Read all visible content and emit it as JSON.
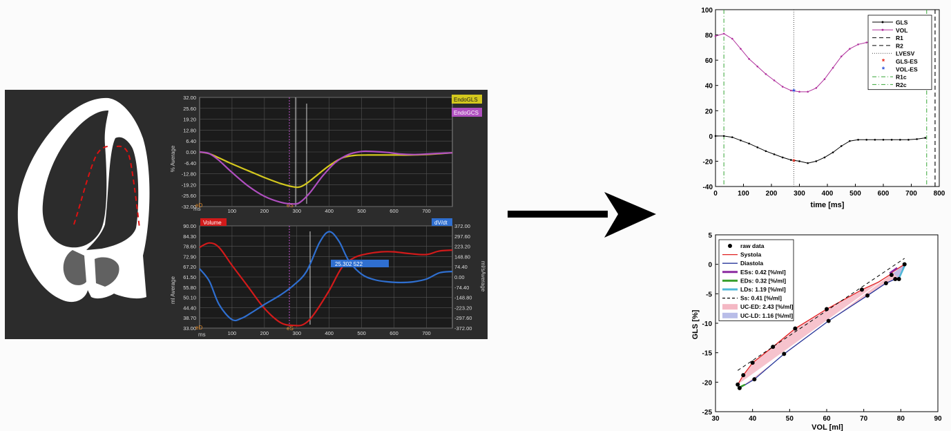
{
  "panel_a": {
    "gls_chart": {
      "y_ticks": [
        "32.00",
        "25.60",
        "19.20",
        "12.80",
        "6.40",
        "0.00",
        "-6.40",
        "-12.80",
        "-19.20",
        "-25.60",
        "-32.00"
      ],
      "x_ticks": [
        "100",
        "200",
        "300",
        "400",
        "500",
        "600",
        "700"
      ],
      "x_unit": "ms",
      "ylabel": "% Average",
      "ed_label": "eD",
      "es_label": "eS",
      "legend": [
        {
          "name": "EndoGLS",
          "color": "#d4c81e"
        },
        {
          "name": "EndoGCS",
          "color": "#b04fc0"
        }
      ]
    },
    "vol_chart": {
      "y_ticks_left": [
        "90.00",
        "84.30",
        "78.60",
        "72.90",
        "67.20",
        "61.50",
        "55.80",
        "50.10",
        "44.40",
        "38.70",
        "33.00"
      ],
      "y_ticks_right": [
        "372.00",
        "297.60",
        "223.20",
        "148.80",
        "74.40",
        "0.00",
        "-74.40",
        "-148.80",
        "-223.20",
        "-297.60",
        "-372.00"
      ],
      "x_ticks": [
        "100",
        "200",
        "300",
        "400",
        "500",
        "600",
        "700"
      ],
      "x_unit": "ms",
      "ylabel_left": "ml Average",
      "ylabel_right": "ml/sAverage",
      "ed_label": "eD",
      "es_label": "eS",
      "volume_tag": "Volume",
      "dvdt_tag": "dV/dt",
      "readout": "25.302  522",
      "colors": {
        "volume": "#d21a1a",
        "dvdt": "#2f6fd0"
      }
    }
  },
  "chart_data": [
    {
      "type": "line",
      "title": "",
      "xlabel": "ms",
      "ylabel": "% Average",
      "xlim": [
        0,
        780
      ],
      "ylim": [
        -32,
        32
      ],
      "grid": true,
      "legend_position": "top-right",
      "series": [
        {
          "name": "EndoGLS",
          "color": "#d4c81e",
          "x": [
            0,
            30,
            60,
            100,
            150,
            200,
            250,
            290,
            310,
            330,
            360,
            400,
            440,
            480,
            520,
            560,
            600,
            650,
            700,
            740,
            780
          ],
          "y": [
            0,
            -1,
            -3.5,
            -7,
            -11,
            -15,
            -18.5,
            -20.5,
            -20.5,
            -18.5,
            -14,
            -8,
            -3.5,
            -2,
            -1.8,
            -1.8,
            -1.8,
            -1.8,
            -1.5,
            -1,
            -0.5
          ]
        },
        {
          "name": "EndoGCS",
          "color": "#b04fc0",
          "x": [
            0,
            30,
            60,
            100,
            150,
            200,
            250,
            290,
            310,
            340,
            380,
            420,
            460,
            500,
            540,
            580,
            620,
            660,
            700,
            740,
            780
          ],
          "y": [
            0,
            -1,
            -5,
            -12,
            -20,
            -26,
            -29.5,
            -30.5,
            -29.5,
            -24,
            -14,
            -6,
            -1.5,
            0.3,
            0.2,
            -0.3,
            -1.2,
            -1.5,
            -1.2,
            -0.8,
            -0.5
          ]
        }
      ]
    },
    {
      "type": "line",
      "title": "",
      "xlabel": "ms",
      "ylabel": "ml Average",
      "ylabel_right": "ml/sAverage",
      "xlim": [
        0,
        780
      ],
      "ylim": [
        33,
        90
      ],
      "ylim_right": [
        -372,
        372
      ],
      "grid": true,
      "series": [
        {
          "name": "Volume",
          "axis": "left",
          "color": "#d21a1a",
          "x": [
            0,
            30,
            60,
            100,
            150,
            200,
            250,
            290,
            320,
            350,
            400,
            440,
            480,
            520,
            560,
            600,
            650,
            700,
            740,
            780
          ],
          "y": [
            78,
            80.5,
            78,
            68,
            56,
            44,
            36,
            34.5,
            35,
            40,
            54,
            67,
            72.5,
            74.5,
            75.5,
            75.5,
            74.5,
            74,
            76,
            76.5
          ]
        },
        {
          "name": "dV/dt",
          "axis": "right",
          "color": "#2f6fd0",
          "x": [
            0,
            30,
            60,
            100,
            130,
            160,
            200,
            250,
            290,
            330,
            370,
            400,
            430,
            460,
            500,
            540,
            580,
            620,
            660,
            700,
            740,
            780
          ],
          "y": [
            60,
            -30,
            -200,
            -310,
            -300,
            -260,
            -200,
            -130,
            -60,
            40,
            250,
            330,
            260,
            120,
            20,
            -20,
            -35,
            -40,
            -35,
            -15,
            30,
            40
          ]
        }
      ],
      "annotations": [
        "25.302  522"
      ]
    },
    {
      "type": "line",
      "title": "",
      "xlabel": "time [ms]",
      "ylabel": "",
      "xlim": [
        0,
        800
      ],
      "ylim": [
        -40,
        100
      ],
      "x_ticks": [
        0,
        100,
        200,
        300,
        400,
        500,
        600,
        700,
        800
      ],
      "y_ticks": [
        -40,
        -20,
        0,
        20,
        40,
        60,
        80,
        100
      ],
      "grid": false,
      "legend_position": "top-right",
      "series": [
        {
          "name": "GLS",
          "color": "#000000",
          "x": [
            0,
            30,
            60,
            90,
            120,
            150,
            180,
            210,
            240,
            270,
            300,
            330,
            360,
            390,
            420,
            450,
            480,
            510,
            540,
            570,
            600,
            630,
            660,
            690,
            720,
            750
          ],
          "y": [
            0,
            0,
            -1,
            -3.5,
            -6,
            -9,
            -12,
            -14.5,
            -17,
            -19,
            -20,
            -21.5,
            -20,
            -17,
            -13,
            -8,
            -4,
            -3,
            -3,
            -3,
            -3,
            -3,
            -3,
            -3,
            -2.5,
            -1.5
          ]
        },
        {
          "name": "VOL",
          "color": "#b0309c",
          "x": [
            0,
            30,
            60,
            90,
            120,
            150,
            180,
            210,
            240,
            270,
            300,
            330,
            360,
            390,
            420,
            450,
            480,
            510,
            540,
            570,
            600,
            630,
            660,
            690,
            720,
            750
          ],
          "y": [
            79,
            81,
            77,
            69,
            61,
            55,
            49,
            44,
            39,
            36,
            35,
            35,
            38,
            45,
            54,
            63,
            69,
            72.5,
            74,
            75,
            76,
            76.5,
            76.5,
            77,
            78,
            79
          ]
        }
      ],
      "reference_lines": [
        {
          "name": "R1",
          "x": 785,
          "style": "dashed",
          "color": "#000000"
        },
        {
          "name": "R2",
          "x": 785,
          "style": "dashed",
          "color": "#000000"
        },
        {
          "name": "LVESV",
          "x": 280,
          "style": "dotted",
          "color": "#444444"
        },
        {
          "name": "R1c",
          "x": 30,
          "style": "dashdot",
          "color": "#35a535"
        },
        {
          "name": "R2c",
          "x": 755,
          "style": "dashdot",
          "color": "#35a535"
        }
      ],
      "markers": [
        {
          "name": "GLS-ES",
          "x": 280,
          "y": -20.5,
          "color": "#e8281a"
        },
        {
          "name": "VOL-ES",
          "x": 280,
          "y": 35,
          "color": "#2a4fd8"
        }
      ],
      "legend": [
        "GLS",
        "VOL",
        "R1",
        "R2",
        "LVESV",
        "GLS-ES",
        "VOL-ES",
        "R1c",
        "R2c"
      ]
    },
    {
      "type": "scatter",
      "title": "",
      "xlabel": "VOL [ml]",
      "ylabel": "GLS [%]",
      "xlim": [
        30,
        90
      ],
      "ylim": [
        -25,
        5
      ],
      "x_ticks": [
        30,
        40,
        50,
        60,
        70,
        80,
        90
      ],
      "y_ticks": [
        -25,
        -20,
        -15,
        -10,
        -5,
        0,
        5
      ],
      "grid": false,
      "legend_position": "top-left",
      "series": [
        {
          "name": "raw data",
          "type": "scatter",
          "color": "#000000",
          "x": [
            81,
            79.5,
            78.5,
            77.5,
            76,
            71,
            69.5,
            60.5,
            60,
            51.5,
            48.5,
            45.5,
            40.5,
            40,
            37.5,
            36.5,
            36
          ],
          "y": [
            0,
            -2.5,
            -2.5,
            -1.8,
            -3.2,
            -5.3,
            -4.3,
            -9.6,
            -7.6,
            -10.9,
            -15.2,
            -14,
            -19.5,
            -16.7,
            -18.8,
            -21,
            -20.4
          ]
        },
        {
          "name": "Systola",
          "type": "line",
          "color": "#e02020",
          "x": [
            81,
            78,
            77,
            74,
            69.5,
            60,
            51.5,
            45.5,
            40,
            37.5,
            36
          ],
          "y": [
            0,
            -1.2,
            -1.8,
            -3,
            -4.3,
            -7.6,
            -10.9,
            -14,
            -16.7,
            -18.8,
            -20.4
          ]
        },
        {
          "name": "Diastola",
          "type": "line",
          "color": "#24359a",
          "x": [
            36.5,
            40.5,
            48.5,
            60.5,
            71,
            76,
            78.5,
            79.5,
            81
          ],
          "y": [
            -21,
            -19.5,
            -15.2,
            -9.6,
            -5.3,
            -3.2,
            -2.5,
            -2.5,
            0
          ]
        },
        {
          "name": "ESs: 0.42 [%/ml]",
          "type": "line",
          "color": "#8b2aa0",
          "x": [
            77,
            79
          ],
          "y": [
            -1.5,
            -0.6
          ]
        },
        {
          "name": "EDs: 0.32 [%/ml]",
          "type": "line",
          "color": "#3aa02e",
          "x": [
            36,
            38
          ],
          "y": [
            -21,
            -20.4
          ]
        },
        {
          "name": "LDs: 1.19 [%/ml]",
          "type": "line",
          "color": "#4fb8d8",
          "x": [
            79.5,
            81
          ],
          "y": [
            -2.4,
            -0.3
          ]
        },
        {
          "name": "Ss: 0.41 [%/ml]",
          "type": "line",
          "color": "#000000",
          "style": "dashed",
          "x": [
            36,
            81
          ],
          "y": [
            -18,
            1
          ]
        },
        {
          "name": "UC-ED: 2.43 [%/ml]",
          "type": "area",
          "color": "#f4b8c4"
        },
        {
          "name": "UC-LD: 1.16 [%/ml]",
          "type": "area",
          "color": "#b9bde8"
        }
      ]
    }
  ]
}
